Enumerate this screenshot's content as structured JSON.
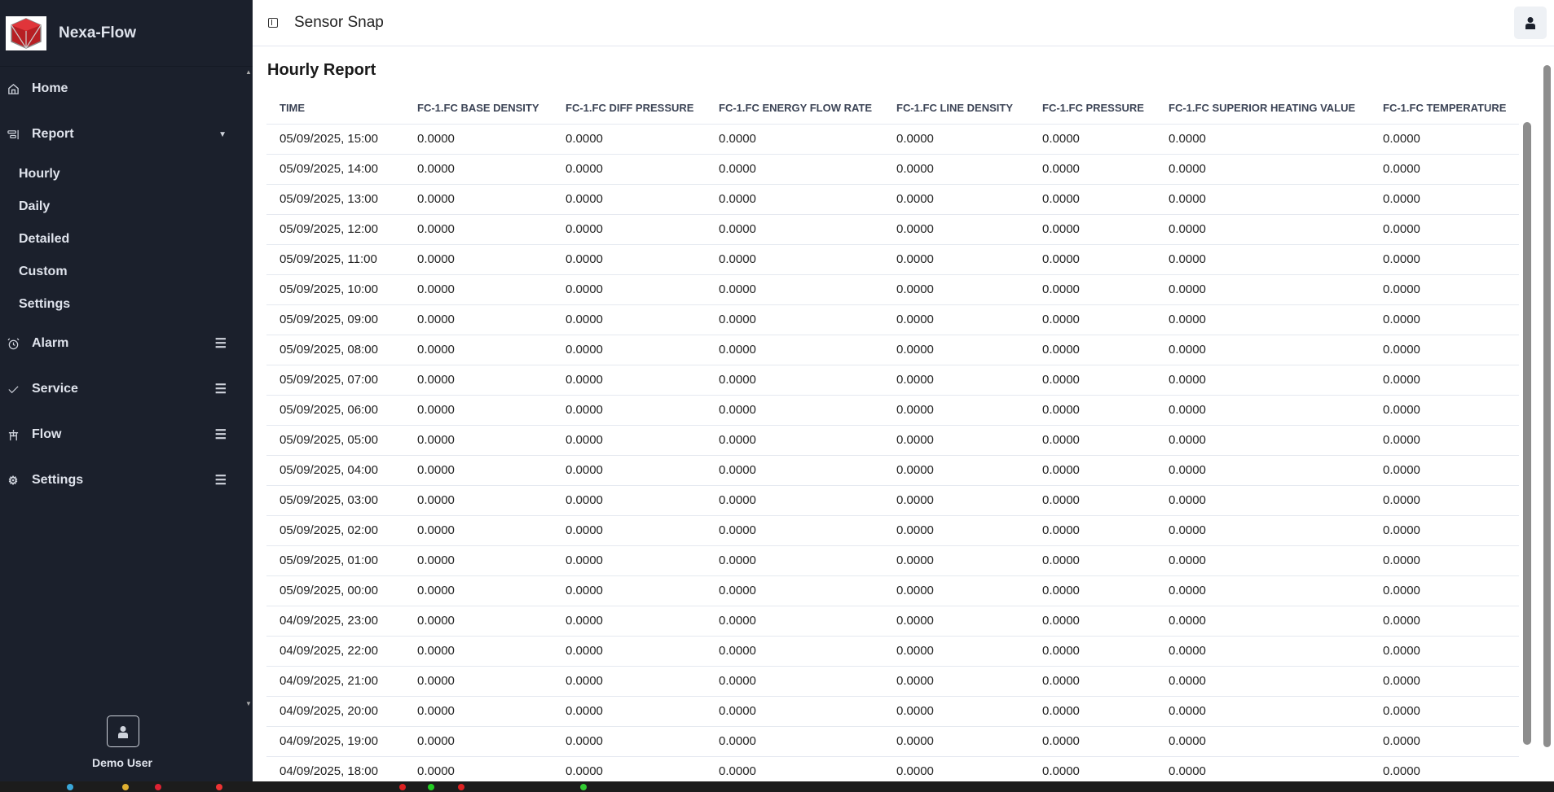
{
  "brand": {
    "name": "Nexa-Flow"
  },
  "sidebar": {
    "items": [
      {
        "label": "Home",
        "icon": "home-icon"
      },
      {
        "label": "Report",
        "icon": "report-icon",
        "expanded": true
      },
      {
        "label": "Alarm",
        "icon": "alarm-icon"
      },
      {
        "label": "Service",
        "icon": "check-icon"
      },
      {
        "label": "Flow",
        "icon": "flow-icon"
      },
      {
        "label": "Settings",
        "icon": "gear-icon"
      }
    ],
    "report_sub": [
      "Hourly",
      "Daily",
      "Detailed",
      "Custom",
      "Settings"
    ],
    "user": "Demo User"
  },
  "header": {
    "title": "Sensor Snap"
  },
  "main": {
    "title": "Hourly Report",
    "columns": [
      "TIME",
      "FC-1.FC BASE DENSITY",
      "FC-1.FC DIFF PRESSURE",
      "FC-1.FC ENERGY FLOW RATE",
      "FC-1.FC LINE DENSITY",
      "FC-1.FC PRESSURE",
      "FC-1.FC SUPERIOR HEATING VALUE",
      "FC-1.FC TEMPERATURE"
    ],
    "rows": [
      [
        "05/09/2025, 15:00",
        "0.0000",
        "0.0000",
        "0.0000",
        "0.0000",
        "0.0000",
        "0.0000",
        "0.0000"
      ],
      [
        "05/09/2025, 14:00",
        "0.0000",
        "0.0000",
        "0.0000",
        "0.0000",
        "0.0000",
        "0.0000",
        "0.0000"
      ],
      [
        "05/09/2025, 13:00",
        "0.0000",
        "0.0000",
        "0.0000",
        "0.0000",
        "0.0000",
        "0.0000",
        "0.0000"
      ],
      [
        "05/09/2025, 12:00",
        "0.0000",
        "0.0000",
        "0.0000",
        "0.0000",
        "0.0000",
        "0.0000",
        "0.0000"
      ],
      [
        "05/09/2025, 11:00",
        "0.0000",
        "0.0000",
        "0.0000",
        "0.0000",
        "0.0000",
        "0.0000",
        "0.0000"
      ],
      [
        "05/09/2025, 10:00",
        "0.0000",
        "0.0000",
        "0.0000",
        "0.0000",
        "0.0000",
        "0.0000",
        "0.0000"
      ],
      [
        "05/09/2025, 09:00",
        "0.0000",
        "0.0000",
        "0.0000",
        "0.0000",
        "0.0000",
        "0.0000",
        "0.0000"
      ],
      [
        "05/09/2025, 08:00",
        "0.0000",
        "0.0000",
        "0.0000",
        "0.0000",
        "0.0000",
        "0.0000",
        "0.0000"
      ],
      [
        "05/09/2025, 07:00",
        "0.0000",
        "0.0000",
        "0.0000",
        "0.0000",
        "0.0000",
        "0.0000",
        "0.0000"
      ],
      [
        "05/09/2025, 06:00",
        "0.0000",
        "0.0000",
        "0.0000",
        "0.0000",
        "0.0000",
        "0.0000",
        "0.0000"
      ],
      [
        "05/09/2025, 05:00",
        "0.0000",
        "0.0000",
        "0.0000",
        "0.0000",
        "0.0000",
        "0.0000",
        "0.0000"
      ],
      [
        "05/09/2025, 04:00",
        "0.0000",
        "0.0000",
        "0.0000",
        "0.0000",
        "0.0000",
        "0.0000",
        "0.0000"
      ],
      [
        "05/09/2025, 03:00",
        "0.0000",
        "0.0000",
        "0.0000",
        "0.0000",
        "0.0000",
        "0.0000",
        "0.0000"
      ],
      [
        "05/09/2025, 02:00",
        "0.0000",
        "0.0000",
        "0.0000",
        "0.0000",
        "0.0000",
        "0.0000",
        "0.0000"
      ],
      [
        "05/09/2025, 01:00",
        "0.0000",
        "0.0000",
        "0.0000",
        "0.0000",
        "0.0000",
        "0.0000",
        "0.0000"
      ],
      [
        "05/09/2025, 00:00",
        "0.0000",
        "0.0000",
        "0.0000",
        "0.0000",
        "0.0000",
        "0.0000",
        "0.0000"
      ],
      [
        "04/09/2025, 23:00",
        "0.0000",
        "0.0000",
        "0.0000",
        "0.0000",
        "0.0000",
        "0.0000",
        "0.0000"
      ],
      [
        "04/09/2025, 22:00",
        "0.0000",
        "0.0000",
        "0.0000",
        "0.0000",
        "0.0000",
        "0.0000",
        "0.0000"
      ],
      [
        "04/09/2025, 21:00",
        "0.0000",
        "0.0000",
        "0.0000",
        "0.0000",
        "0.0000",
        "0.0000",
        "0.0000"
      ],
      [
        "04/09/2025, 20:00",
        "0.0000",
        "0.0000",
        "0.0000",
        "0.0000",
        "0.0000",
        "0.0000",
        "0.0000"
      ],
      [
        "04/09/2025, 19:00",
        "0.0000",
        "0.0000",
        "0.0000",
        "0.0000",
        "0.0000",
        "0.0000",
        "0.0000"
      ],
      [
        "04/09/2025, 18:00",
        "0.0000",
        "0.0000",
        "0.0000",
        "0.0000",
        "0.0000",
        "0.0000",
        "0.0000"
      ]
    ]
  },
  "colors": {
    "sidebar_bg": "#1b202c",
    "logo_red": "#c0262b"
  }
}
